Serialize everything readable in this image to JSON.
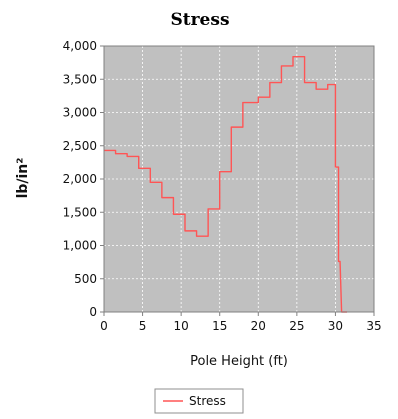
{
  "chart_data": {
    "type": "line",
    "title": "Stress",
    "xlabel": "Pole Height (ft)",
    "ylabel": "lb/in²",
    "xlim": [
      0,
      35
    ],
    "ylim": [
      0,
      4000
    ],
    "xticks": [
      0,
      5,
      10,
      15,
      20,
      25,
      30,
      35
    ],
    "xtick_labels": [
      "0",
      "5",
      "10",
      "15",
      "20",
      "25",
      "30",
      "35"
    ],
    "yticks": [
      0,
      500,
      1000,
      1500,
      2000,
      2500,
      3000,
      3500,
      4000
    ],
    "ytick_labels": [
      "0",
      "500",
      "1,000",
      "1,500",
      "2,000",
      "2,500",
      "3,000",
      "3,500",
      "4,000"
    ],
    "grid": true,
    "legend_position": "bottom",
    "plot_background": "#c0c0c0",
    "series": [
      {
        "name": "Stress",
        "color": "#ff5555",
        "points": [
          [
            0,
            2430
          ],
          [
            1.5,
            2430
          ],
          [
            1.5,
            2380
          ],
          [
            3.0,
            2380
          ],
          [
            3.0,
            2340
          ],
          [
            4.5,
            2340
          ],
          [
            4.5,
            2160
          ],
          [
            6.0,
            2160
          ],
          [
            6.0,
            1950
          ],
          [
            7.5,
            1950
          ],
          [
            7.5,
            1720
          ],
          [
            9.0,
            1720
          ],
          [
            9.0,
            1470
          ],
          [
            10.5,
            1470
          ],
          [
            10.5,
            1220
          ],
          [
            12.0,
            1220
          ],
          [
            12.0,
            1140
          ],
          [
            13.5,
            1140
          ],
          [
            13.5,
            1550
          ],
          [
            15.0,
            1550
          ],
          [
            15.0,
            2110
          ],
          [
            16.5,
            2110
          ],
          [
            16.5,
            2780
          ],
          [
            18.0,
            2780
          ],
          [
            18.0,
            3150
          ],
          [
            20.0,
            3150
          ],
          [
            20.0,
            3230
          ],
          [
            21.5,
            3230
          ],
          [
            21.5,
            3450
          ],
          [
            23.0,
            3450
          ],
          [
            23.0,
            3700
          ],
          [
            24.5,
            3700
          ],
          [
            24.5,
            3840
          ],
          [
            26.0,
            3840
          ],
          [
            26.0,
            3450
          ],
          [
            27.5,
            3450
          ],
          [
            27.5,
            3350
          ],
          [
            29.0,
            3350
          ],
          [
            29.0,
            3420
          ],
          [
            30.0,
            3420
          ],
          [
            30.0,
            2180
          ],
          [
            30.4,
            2180
          ],
          [
            30.4,
            760
          ],
          [
            30.6,
            760
          ],
          [
            30.8,
            0
          ],
          [
            31.5,
            0
          ]
        ]
      }
    ]
  }
}
